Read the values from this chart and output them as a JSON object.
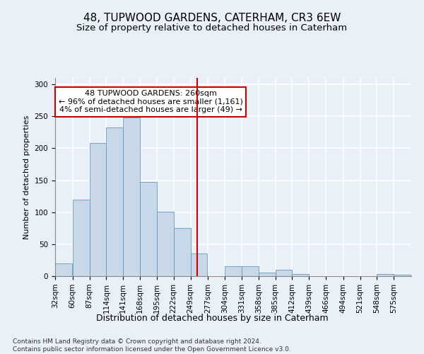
{
  "title": "48, TUPWOOD GARDENS, CATERHAM, CR3 6EW",
  "subtitle": "Size of property relative to detached houses in Caterham",
  "xlabel": "Distribution of detached houses by size in Caterham",
  "ylabel": "Number of detached properties",
  "bar_color": "#c8d8e8",
  "bar_edge_color": "#6699bb",
  "vline_color": "#cc0000",
  "vline_value": 260,
  "annotation_text": "48 TUPWOOD GARDENS: 260sqm\n← 96% of detached houses are smaller (1,161)\n4% of semi-detached houses are larger (49) →",
  "annotation_box_color": "#ffffff",
  "annotation_box_edge": "#cc0000",
  "footnote": "Contains HM Land Registry data © Crown copyright and database right 2024.\nContains public sector information licensed under the Open Government Licence v3.0.",
  "bins": [
    32,
    60,
    87,
    114,
    141,
    168,
    195,
    222,
    249,
    277,
    304,
    331,
    358,
    385,
    412,
    439,
    466,
    494,
    521,
    548,
    575
  ],
  "counts": [
    20,
    120,
    208,
    232,
    248,
    147,
    101,
    75,
    35,
    0,
    16,
    15,
    5,
    10,
    3,
    0,
    0,
    0,
    0,
    3,
    2
  ],
  "ylim": [
    0,
    310
  ],
  "yticks": [
    0,
    50,
    100,
    150,
    200,
    250,
    300
  ],
  "background_color": "#eaf0f8",
  "grid_color": "#ffffff",
  "title_fontsize": 11,
  "subtitle_fontsize": 9.5,
  "xlabel_fontsize": 9,
  "ylabel_fontsize": 8,
  "tick_fontsize": 7.5,
  "footnote_fontsize": 6.5,
  "annot_fontsize": 8
}
